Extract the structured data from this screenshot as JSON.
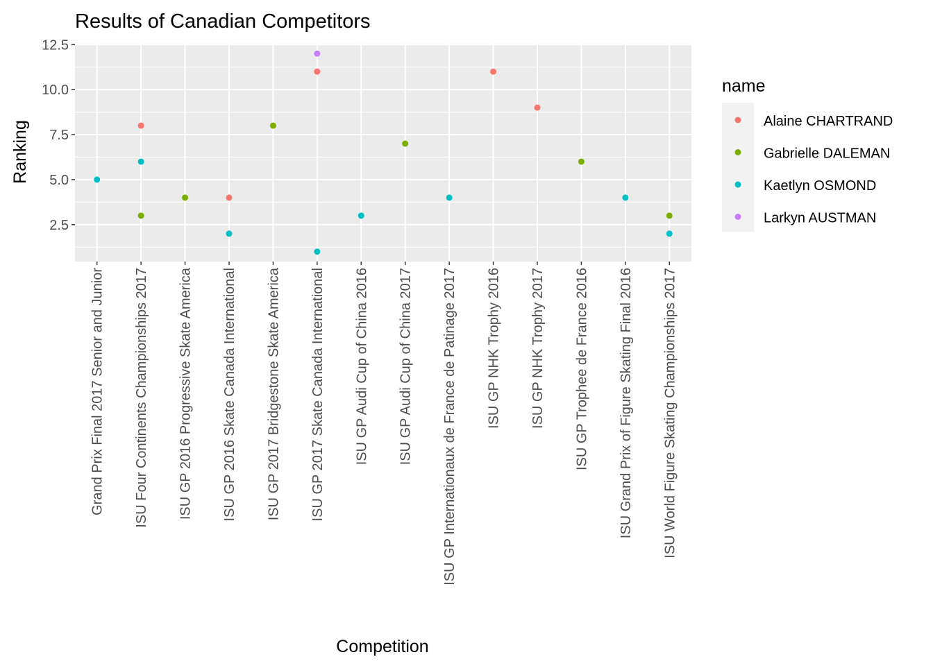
{
  "chart_data": {
    "type": "scatter",
    "title": "Results of Canadian Competitors",
    "xlabel": "Competition",
    "ylabel": "Ranking",
    "ylim": [
      0.45,
      12.55
    ],
    "yticks": [
      2.5,
      5.0,
      7.5,
      10.0,
      12.5
    ],
    "ytick_labels": [
      "2.5",
      "5.0",
      "7.5",
      "10.0",
      "12.5"
    ],
    "grid": true,
    "legend": {
      "title": "name",
      "position": "right"
    },
    "categories": [
      "Grand Prix Final 2017 Senior and Junior",
      "ISU Four Continents Championships 2017",
      "ISU GP 2016 Progressive Skate America",
      "ISU GP 2016 Skate Canada International",
      "ISU GP 2017 Bridgestone Skate America",
      "ISU GP 2017 Skate Canada International",
      "ISU GP Audi Cup of China 2016",
      "ISU GP Audi Cup of China 2017",
      "ISU GP Internationaux de France de Patinage 2017",
      "ISU GP NHK Trophy 2016",
      "ISU GP NHK Trophy 2017",
      "ISU GP Trophee de France 2016",
      "ISU Grand Prix of Figure Skating Final 2016",
      "ISU World Figure Skating Championships 2017"
    ],
    "series": [
      {
        "name": "Alaine CHARTRAND",
        "color": "#F8766D",
        "points": [
          {
            "x": "ISU Four Continents Championships 2017",
            "y": 8
          },
          {
            "x": "ISU GP 2016 Skate Canada International",
            "y": 4
          },
          {
            "x": "ISU GP 2017 Skate Canada International",
            "y": 11
          },
          {
            "x": "ISU GP NHK Trophy 2016",
            "y": 11
          },
          {
            "x": "ISU GP NHK Trophy 2017",
            "y": 9
          }
        ]
      },
      {
        "name": "Gabrielle DALEMAN",
        "color": "#7CAE00",
        "points": [
          {
            "x": "ISU Four Continents Championships 2017",
            "y": 3
          },
          {
            "x": "ISU GP 2016 Progressive Skate America",
            "y": 4
          },
          {
            "x": "ISU GP 2017 Bridgestone Skate America",
            "y": 8
          },
          {
            "x": "ISU GP Audi Cup of China 2017",
            "y": 7
          },
          {
            "x": "ISU GP Trophee de France 2016",
            "y": 6
          },
          {
            "x": "ISU World Figure Skating Championships 2017",
            "y": 3
          }
        ]
      },
      {
        "name": "Kaetlyn OSMOND",
        "color": "#00BFC4",
        "points": [
          {
            "x": "Grand Prix Final 2017 Senior and Junior",
            "y": 5
          },
          {
            "x": "ISU Four Continents Championships 2017",
            "y": 6
          },
          {
            "x": "ISU GP 2016 Skate Canada International",
            "y": 2
          },
          {
            "x": "ISU GP 2017 Skate Canada International",
            "y": 1
          },
          {
            "x": "ISU GP Audi Cup of China 2016",
            "y": 3
          },
          {
            "x": "ISU GP Internationaux de France de Patinage 2017",
            "y": 4
          },
          {
            "x": "ISU Grand Prix of Figure Skating Final 2016",
            "y": 4
          },
          {
            "x": "ISU World Figure Skating Championships 2017",
            "y": 2
          }
        ]
      },
      {
        "name": "Larkyn AUSTMAN",
        "color": "#C77CFF",
        "points": [
          {
            "x": "ISU GP 2017 Skate Canada International",
            "y": 12
          }
        ]
      }
    ]
  }
}
